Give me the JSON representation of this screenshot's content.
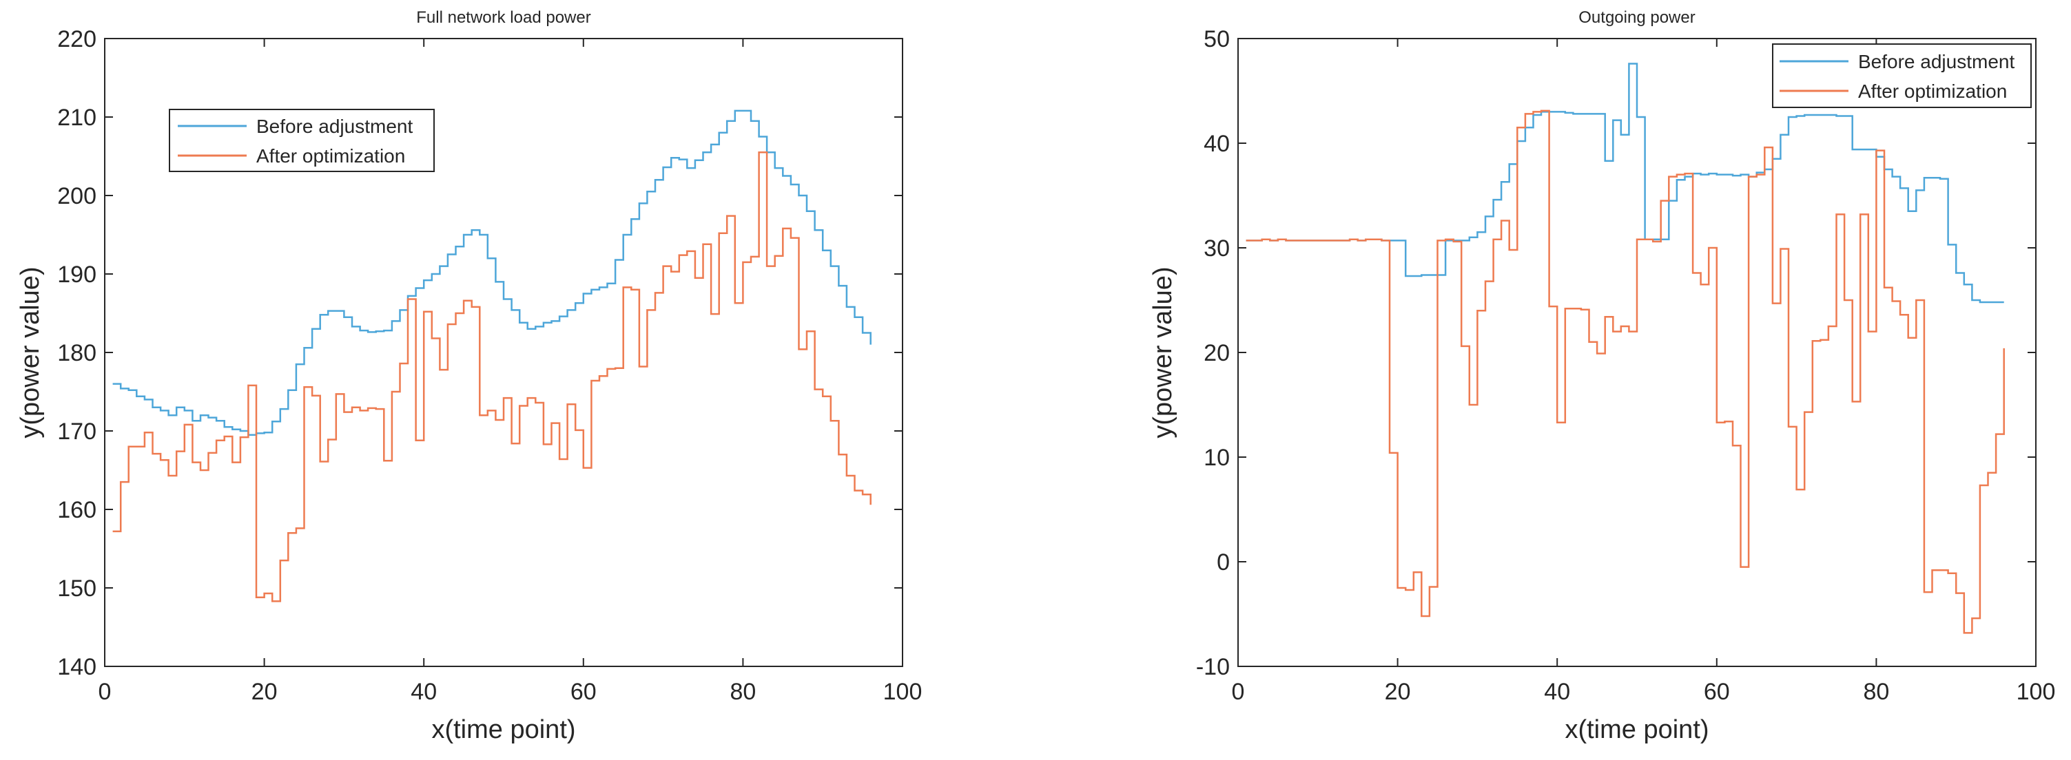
{
  "chart_data": [
    {
      "type": "line",
      "step": true,
      "title": "Full network load power",
      "xlabel": "x(time point)",
      "ylabel": "y(power value)",
      "xlim": [
        0,
        100
      ],
      "ylim": [
        140,
        220
      ],
      "xticks": [
        0,
        20,
        40,
        60,
        80,
        100
      ],
      "yticks": [
        140,
        150,
        160,
        170,
        180,
        190,
        200,
        210,
        220
      ],
      "grid": false,
      "legend_position": "top-left (inset)",
      "x": [
        1,
        2,
        3,
        4,
        5,
        6,
        7,
        8,
        9,
        10,
        11,
        12,
        13,
        14,
        15,
        16,
        17,
        18,
        19,
        20,
        21,
        22,
        23,
        24,
        25,
        26,
        27,
        28,
        29,
        30,
        31,
        32,
        33,
        34,
        35,
        36,
        37,
        38,
        39,
        40,
        41,
        42,
        43,
        44,
        45,
        46,
        47,
        48,
        49,
        50,
        51,
        52,
        53,
        54,
        55,
        56,
        57,
        58,
        59,
        60,
        61,
        62,
        63,
        64,
        65,
        66,
        67,
        68,
        69,
        70,
        71,
        72,
        73,
        74,
        75,
        76,
        77,
        78,
        79,
        80,
        81,
        82,
        83,
        84,
        85,
        86,
        87,
        88,
        89,
        90,
        91,
        92,
        93,
        94,
        95,
        96
      ],
      "series": [
        {
          "name": "Before adjustment",
          "color": "#4DA6D9",
          "values": [
            176.0,
            175.4,
            175.2,
            174.4,
            174.0,
            173.0,
            172.6,
            172.0,
            173.0,
            172.6,
            171.3,
            172.0,
            171.7,
            171.3,
            170.5,
            170.2,
            170.0,
            169.5,
            169.7,
            169.8,
            171.2,
            172.8,
            175.2,
            178.5,
            180.6,
            183.0,
            184.8,
            185.3,
            185.3,
            184.5,
            183.3,
            182.8,
            182.6,
            182.7,
            182.8,
            184.0,
            185.4,
            187.2,
            188.2,
            189.2,
            190.0,
            191.0,
            192.5,
            193.5,
            195.0,
            195.6,
            195.0,
            192.0,
            189.0,
            186.8,
            185.4,
            183.8,
            183.0,
            183.3,
            183.8,
            184.0,
            184.6,
            185.4,
            186.3,
            187.5,
            188.0,
            188.3,
            188.8,
            191.8,
            195.0,
            197.0,
            199.0,
            200.5,
            202.0,
            203.6,
            204.8,
            204.6,
            203.5,
            204.5,
            205.5,
            206.5,
            208.0,
            209.5,
            210.8,
            210.8,
            209.5,
            207.5,
            205.5,
            203.5,
            202.5,
            201.4,
            200.0,
            198.0,
            195.6,
            193.0,
            191.0,
            188.5,
            185.8,
            184.5,
            182.5,
            181.0
          ]
        },
        {
          "name": "After optimization",
          "color": "#EE7B50",
          "values": [
            157.2,
            163.5,
            168.0,
            168.0,
            169.8,
            167.1,
            166.3,
            164.3,
            167.4,
            170.8,
            166.0,
            165.0,
            167.2,
            168.8,
            169.3,
            166.0,
            169.2,
            175.8,
            148.8,
            149.3,
            148.3,
            153.5,
            157.0,
            157.6,
            175.6,
            174.5,
            166.1,
            168.9,
            174.7,
            172.4,
            173.0,
            172.6,
            172.9,
            172.8,
            166.2,
            175.0,
            178.6,
            186.8,
            168.8,
            185.2,
            181.8,
            177.8,
            183.6,
            185.0,
            186.6,
            185.8,
            172.0,
            172.6,
            171.4,
            174.2,
            168.4,
            173.2,
            174.2,
            173.6,
            168.3,
            171.0,
            166.4,
            173.4,
            170.1,
            165.3,
            176.4,
            177.0,
            177.9,
            178.0,
            188.3,
            188.0,
            178.2,
            185.4,
            187.6,
            191.0,
            190.3,
            192.4,
            192.9,
            189.5,
            193.8,
            184.9,
            195.2,
            197.4,
            186.3,
            191.5,
            192.2,
            205.5,
            191.0,
            192.3,
            195.8,
            194.6,
            180.4,
            182.7,
            175.3,
            174.4,
            171.3,
            167.0,
            164.3,
            162.4,
            161.9,
            160.6
          ]
        }
      ]
    },
    {
      "type": "line",
      "step": true,
      "title": "Outgoing power",
      "xlabel": "x(time point)",
      "ylabel": "y(power value)",
      "xlim": [
        0,
        100
      ],
      "ylim": [
        -10,
        50
      ],
      "xticks": [
        0,
        20,
        40,
        60,
        80,
        100
      ],
      "yticks": [
        -10,
        0,
        10,
        20,
        30,
        40,
        50
      ],
      "grid": false,
      "legend_position": "top-right",
      "x": [
        1,
        2,
        3,
        4,
        5,
        6,
        7,
        8,
        9,
        10,
        11,
        12,
        13,
        14,
        15,
        16,
        17,
        18,
        19,
        20,
        21,
        22,
        23,
        24,
        25,
        26,
        27,
        28,
        29,
        30,
        31,
        32,
        33,
        34,
        35,
        36,
        37,
        38,
        39,
        40,
        41,
        42,
        43,
        44,
        45,
        46,
        47,
        48,
        49,
        50,
        51,
        52,
        53,
        54,
        55,
        56,
        57,
        58,
        59,
        60,
        61,
        62,
        63,
        64,
        65,
        66,
        67,
        68,
        69,
        70,
        71,
        72,
        73,
        74,
        75,
        76,
        77,
        78,
        79,
        80,
        81,
        82,
        83,
        84,
        85,
        86,
        87,
        88,
        89,
        90,
        91,
        92,
        93,
        94,
        95,
        96
      ],
      "series": [
        {
          "name": "Before adjustment",
          "color": "#4DA6D9",
          "values": [
            30.7,
            30.7,
            30.8,
            30.7,
            30.8,
            30.7,
            30.7,
            30.7,
            30.7,
            30.7,
            30.7,
            30.7,
            30.7,
            30.8,
            30.7,
            30.8,
            30.8,
            30.7,
            30.7,
            30.7,
            27.3,
            27.3,
            27.4,
            27.4,
            27.4,
            30.7,
            30.7,
            30.7,
            31.0,
            31.5,
            33.0,
            34.6,
            36.3,
            38.0,
            40.2,
            41.5,
            42.7,
            43.0,
            43.0,
            43.0,
            42.9,
            42.8,
            42.8,
            42.8,
            42.8,
            38.3,
            42.2,
            40.8,
            47.6,
            42.5,
            30.8,
            30.8,
            30.8,
            34.5,
            36.5,
            36.8,
            37.1,
            37.0,
            37.1,
            37.0,
            37.0,
            36.9,
            37.0,
            36.8,
            37.2,
            37.5,
            38.5,
            40.8,
            42.5,
            42.6,
            42.7,
            42.7,
            42.7,
            42.7,
            42.6,
            42.6,
            39.4,
            39.4,
            39.4,
            38.7,
            37.5,
            36.8,
            35.7,
            33.5,
            35.5,
            36.7,
            36.7,
            36.6,
            30.3,
            27.6,
            26.5,
            25.0,
            24.8,
            24.8,
            24.8,
            24.8
          ]
        },
        {
          "name": "After optimization",
          "color": "#EE7B50",
          "values": [
            30.7,
            30.7,
            30.8,
            30.7,
            30.8,
            30.7,
            30.7,
            30.7,
            30.7,
            30.7,
            30.7,
            30.7,
            30.7,
            30.8,
            30.7,
            30.8,
            30.8,
            30.7,
            10.4,
            -2.5,
            -2.7,
            -1.0,
            -5.2,
            -2.4,
            30.7,
            30.8,
            30.6,
            20.6,
            15.0,
            24.0,
            26.8,
            30.8,
            32.6,
            29.8,
            41.5,
            42.8,
            43.0,
            43.1,
            24.4,
            13.3,
            24.2,
            24.2,
            24.1,
            21.0,
            19.9,
            23.4,
            22.0,
            22.5,
            22.0,
            30.8,
            30.8,
            30.6,
            34.5,
            36.8,
            37.0,
            37.1,
            27.6,
            26.5,
            30.0,
            13.3,
            13.4,
            11.1,
            -0.5,
            36.8,
            37.0,
            39.6,
            24.7,
            29.9,
            12.9,
            6.9,
            14.3,
            21.1,
            21.2,
            22.5,
            33.2,
            25.0,
            15.3,
            33.2,
            22.0,
            39.3,
            26.2,
            24.9,
            23.6,
            21.4,
            25.0,
            -2.9,
            -0.8,
            -0.8,
            -1.1,
            -3.0,
            -6.8,
            -5.4,
            7.3,
            8.5,
            12.2,
            20.4
          ]
        }
      ]
    }
  ]
}
